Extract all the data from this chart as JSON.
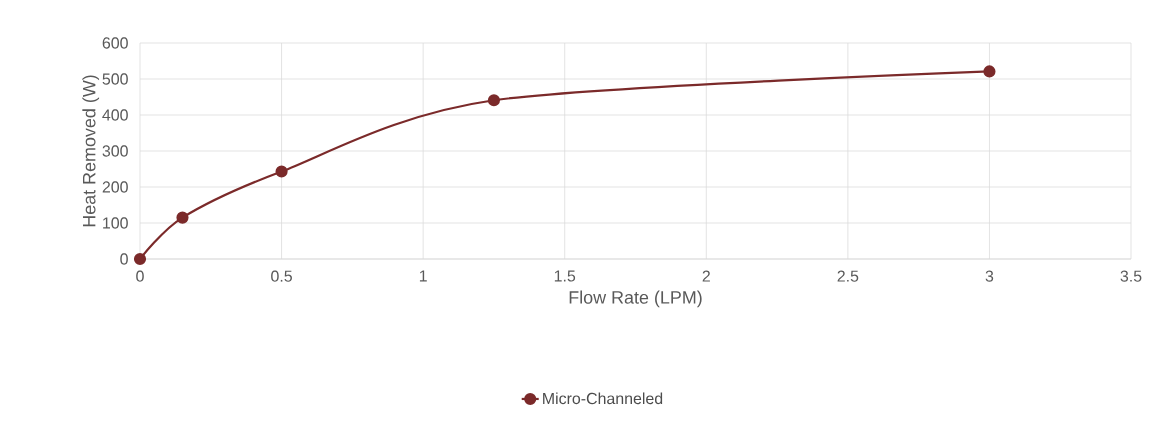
{
  "chart_data": {
    "type": "line",
    "xlabel": "Flow Rate (LPM)",
    "ylabel": "Heat Removed (W)",
    "x": [
      0,
      0.15,
      0.5,
      1.25,
      3
    ],
    "series": [
      {
        "name": "Micro-Channeled",
        "color": "#7b2a2a",
        "values": [
          0,
          115,
          243,
          441,
          521
        ]
      }
    ],
    "xlim": [
      0,
      3.5
    ],
    "xticks": [
      0,
      0.5,
      1,
      1.5,
      2,
      2.5,
      3,
      3.5
    ],
    "ylim": [
      0,
      600
    ],
    "yticks": [
      0,
      100,
      200,
      300,
      400,
      500,
      600
    ],
    "grid": true,
    "legend": "bottom",
    "marker": "circle",
    "line_style": "solid"
  }
}
